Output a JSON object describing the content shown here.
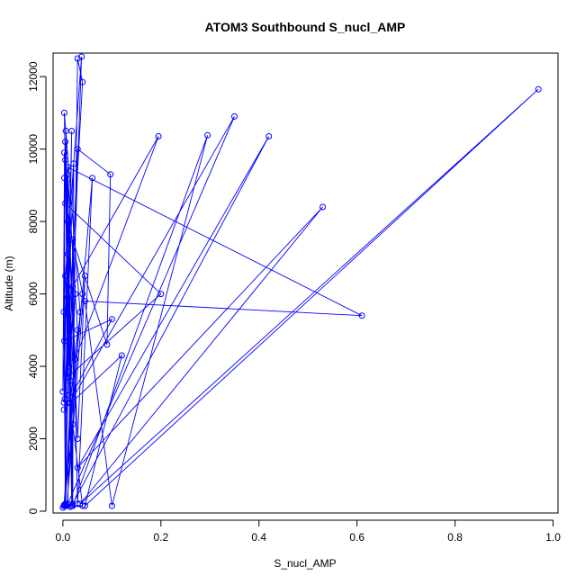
{
  "chart_data": {
    "type": "line",
    "title": "ATOM3 Southbound S_nucl_AMP",
    "xlabel": "S_nucl_AMP",
    "ylabel": "Altitude (m)",
    "xlim": [
      -0.02,
      1.01
    ],
    "ylim": [
      -50,
      12650
    ],
    "xticks": [
      0.0,
      0.2,
      0.4,
      0.6,
      0.8,
      1.0
    ],
    "xtick_labels": [
      "0.0",
      "0.2",
      "0.4",
      "0.6",
      "0.8",
      "1.0"
    ],
    "yticks": [
      0,
      2000,
      4000,
      6000,
      8000,
      10000,
      12000
    ],
    "ytick_labels": [
      "0",
      "2000",
      "4000",
      "6000",
      "8000",
      "10000",
      "12000"
    ],
    "grid": false,
    "marker": "open-circle",
    "series": [
      {
        "color": "#0000ff",
        "points": [
          [
            0.005,
            150
          ],
          [
            0.01,
            3200
          ],
          [
            0.006,
            10500
          ],
          [
            0.018,
            150
          ],
          [
            0.03,
            12500
          ],
          [
            0.04,
            11850
          ],
          [
            0.004,
            3100
          ],
          [
            0.022,
            9600
          ],
          [
            0.02,
            150
          ],
          [
            0.005,
            6500
          ],
          [
            0.038,
            12550
          ],
          [
            0.015,
            3600
          ],
          [
            0.01,
            9300
          ],
          [
            0.03,
            5000
          ],
          [
            0.002,
            150
          ],
          [
            0.06,
            9200
          ],
          [
            0.03,
            200
          ],
          [
            0.02,
            6200
          ],
          [
            0.195,
            10350
          ],
          [
            0.025,
            4200
          ],
          [
            0.005,
            10200
          ],
          [
            0.03,
            2000
          ],
          [
            0.045,
            6500
          ],
          [
            0.008,
            150
          ],
          [
            0.035,
            5500
          ],
          [
            0.003,
            11000
          ],
          [
            0.012,
            4000
          ],
          [
            0.03,
            10000
          ],
          [
            0.097,
            9300
          ],
          [
            0.09,
            4600
          ],
          [
            0.02,
            7500
          ],
          [
            0.01,
            200
          ],
          [
            0.35,
            10900
          ],
          [
            0.015,
            3000
          ],
          [
            0.04,
            6000
          ],
          [
            0.005,
            8500
          ],
          [
            0.2,
            6000
          ],
          [
            0.01,
            3700
          ],
          [
            0.005,
            9700
          ],
          [
            0.02,
            150
          ],
          [
            0.295,
            10380
          ],
          [
            0.1,
            150
          ],
          [
            0.045,
            5800
          ],
          [
            0.61,
            5400
          ],
          [
            0.01,
            9500
          ],
          [
            0.02,
            200
          ],
          [
            0.42,
            10350
          ],
          [
            0.03,
            1200
          ],
          [
            0.53,
            8400
          ],
          [
            0.035,
            200
          ],
          [
            0.97,
            11650
          ],
          [
            0.045,
            150
          ],
          [
            0.12,
            4300
          ],
          [
            0.002,
            2800
          ],
          [
            0.1,
            5300
          ],
          [
            0.003,
            4700
          ],
          [
            0.01,
            7100
          ],
          [
            0.0,
            3300
          ],
          [
            0.003,
            9200
          ],
          [
            0.002,
            5500
          ],
          [
            0.005,
            200
          ],
          [
            0.018,
            10500
          ],
          [
            0.01,
            5900
          ],
          [
            0.003,
            9900
          ],
          [
            0.005,
            150
          ],
          [
            0.025,
            6000
          ],
          [
            0.002,
            3000
          ],
          [
            0.01,
            8000
          ],
          [
            0.004,
            150
          ],
          [
            0.04,
            150
          ],
          [
            0.02,
            2400
          ],
          [
            0.003,
            180
          ],
          [
            0.015,
            120
          ],
          [
            0.0,
            100
          ]
        ]
      }
    ]
  }
}
